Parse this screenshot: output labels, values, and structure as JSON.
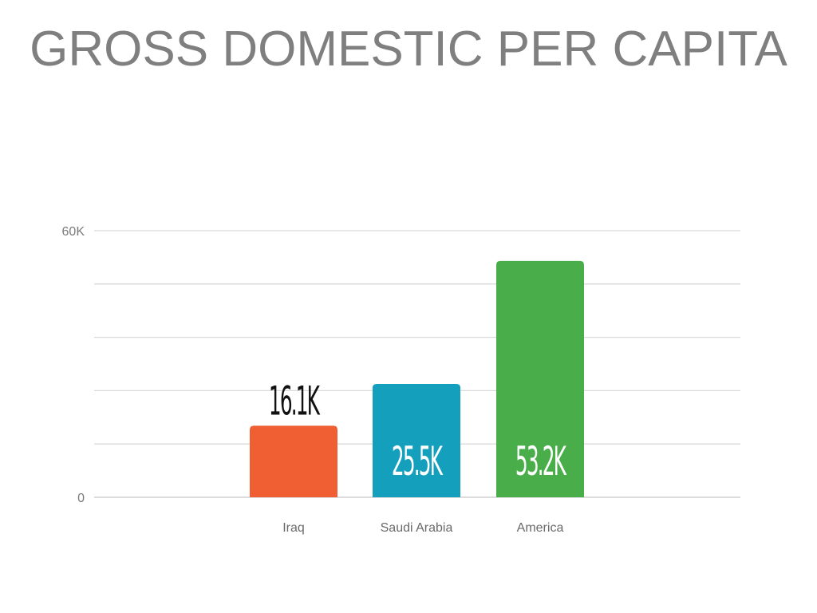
{
  "title": "GROSS DOMESTIC PER CAPITA",
  "chart_data": {
    "type": "bar",
    "title": "GROSS DOMESTIC PER CAPITA",
    "categories": [
      "Iraq",
      "Saudi Arabia",
      "America"
    ],
    "values": [
      16100,
      25500,
      53200
    ],
    "data_labels": [
      "16.1K",
      "25.5K",
      "53.2K"
    ],
    "bar_colors": [
      "#f05e33",
      "#149fbd",
      "#49ad4a"
    ],
    "label_colors": [
      "#111111",
      "#ffffff",
      "#ffffff"
    ],
    "ylim": [
      0,
      60000
    ],
    "yticks": [
      {
        "value": 0,
        "label": "0"
      },
      {
        "value": 60000,
        "label": "60K"
      }
    ],
    "gridlines": [
      0,
      12000,
      24000,
      36000,
      48000,
      60000
    ],
    "grid": true,
    "xlabel": "",
    "ylabel": ""
  }
}
